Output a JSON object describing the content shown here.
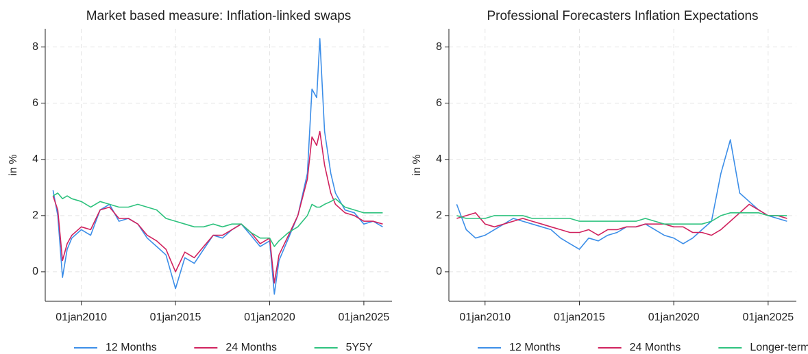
{
  "chart_data": [
    {
      "type": "line",
      "title": "Market based measure: Inflation-linked swaps",
      "y_label": "in %",
      "x": [
        "2008-07-01",
        "2008-10-01",
        "2009-01-01",
        "2009-04-01",
        "2009-07-01",
        "2010-01-01",
        "2010-07-01",
        "2011-01-01",
        "2011-07-01",
        "2012-01-01",
        "2012-07-01",
        "2013-01-01",
        "2013-07-01",
        "2014-01-01",
        "2014-07-01",
        "2015-01-01",
        "2015-07-01",
        "2016-01-01",
        "2016-07-01",
        "2017-01-01",
        "2017-07-01",
        "2018-01-01",
        "2018-07-01",
        "2019-01-01",
        "2019-07-01",
        "2020-01-01",
        "2020-04-01",
        "2020-07-01",
        "2021-01-01",
        "2021-07-01",
        "2022-01-01",
        "2022-04-01",
        "2022-07-01",
        "2022-09-01",
        "2022-12-01",
        "2023-04-01",
        "2023-07-01",
        "2024-01-01",
        "2024-07-01",
        "2025-01-01",
        "2025-07-01",
        "2026-01-01"
      ],
      "series": [
        {
          "name": "12 Months",
          "color": "#3c8ee8",
          "values": [
            2.9,
            2.0,
            -0.2,
            0.8,
            1.2,
            1.5,
            1.3,
            2.2,
            2.4,
            1.8,
            1.9,
            1.7,
            1.2,
            0.9,
            0.6,
            -0.6,
            0.5,
            0.3,
            0.8,
            1.3,
            1.2,
            1.5,
            1.7,
            1.3,
            0.9,
            1.1,
            -0.8,
            0.4,
            1.2,
            2.0,
            3.5,
            6.5,
            6.2,
            8.3,
            5.0,
            3.5,
            2.8,
            2.2,
            2.1,
            1.7,
            1.8,
            1.6
          ]
        },
        {
          "name": "24 Months",
          "color": "#d0225e",
          "values": [
            2.7,
            2.2,
            0.4,
            1.0,
            1.3,
            1.6,
            1.5,
            2.2,
            2.3,
            1.9,
            1.9,
            1.7,
            1.3,
            1.1,
            0.8,
            0.0,
            0.7,
            0.5,
            0.9,
            1.3,
            1.3,
            1.5,
            1.7,
            1.4,
            1.0,
            1.2,
            -0.4,
            0.6,
            1.3,
            2.0,
            3.3,
            4.8,
            4.5,
            5.0,
            3.8,
            2.8,
            2.4,
            2.1,
            2.0,
            1.8,
            1.8,
            1.7
          ]
        },
        {
          "name": "5Y5Y",
          "color": "#2ec27e",
          "values": [
            2.7,
            2.8,
            2.6,
            2.7,
            2.6,
            2.5,
            2.3,
            2.5,
            2.4,
            2.3,
            2.3,
            2.4,
            2.3,
            2.2,
            1.9,
            1.8,
            1.7,
            1.6,
            1.6,
            1.7,
            1.6,
            1.7,
            1.7,
            1.4,
            1.2,
            1.2,
            0.9,
            1.1,
            1.4,
            1.6,
            2.0,
            2.4,
            2.3,
            2.3,
            2.4,
            2.5,
            2.6,
            2.3,
            2.2,
            2.1,
            2.1,
            2.1
          ]
        }
      ],
      "xlim": [
        "2008-02-01",
        "2026-07-01"
      ],
      "xticks": [
        {
          "value": "2010-01-01",
          "label": "01jan2010"
        },
        {
          "value": "2015-01-01",
          "label": "01jan2015"
        },
        {
          "value": "2020-01-01",
          "label": "01jan2020"
        },
        {
          "value": "2025-01-01",
          "label": "01jan2025"
        }
      ],
      "ylim": [
        -1.05,
        8.65
      ],
      "yticks": [
        0,
        2,
        4,
        6,
        8
      ],
      "grid": true,
      "legend": "bottom"
    },
    {
      "type": "line",
      "title": "Professional Forecasters Inflation Expectations",
      "y_label": "in %",
      "x": [
        "2008-07-01",
        "2009-01-01",
        "2009-07-01",
        "2010-01-01",
        "2010-07-01",
        "2011-01-01",
        "2011-07-01",
        "2012-01-01",
        "2012-07-01",
        "2013-01-01",
        "2013-07-01",
        "2014-01-01",
        "2014-07-01",
        "2015-01-01",
        "2015-07-01",
        "2016-01-01",
        "2016-07-01",
        "2017-01-01",
        "2017-07-01",
        "2018-01-01",
        "2018-07-01",
        "2019-01-01",
        "2019-07-01",
        "2020-01-01",
        "2020-07-01",
        "2021-01-01",
        "2021-07-01",
        "2022-01-01",
        "2022-07-01",
        "2023-01-01",
        "2023-07-01",
        "2024-01-01",
        "2024-07-01",
        "2025-01-01",
        "2025-07-01",
        "2026-01-01"
      ],
      "series": [
        {
          "name": "12 Months",
          "color": "#3c8ee8",
          "values": [
            2.4,
            1.5,
            1.2,
            1.3,
            1.5,
            1.7,
            1.9,
            1.8,
            1.7,
            1.6,
            1.5,
            1.2,
            1.0,
            0.8,
            1.2,
            1.1,
            1.3,
            1.4,
            1.6,
            1.6,
            1.7,
            1.5,
            1.3,
            1.2,
            1.0,
            1.2,
            1.5,
            1.8,
            3.5,
            4.7,
            2.8,
            2.5,
            2.2,
            2.0,
            1.9,
            1.8
          ]
        },
        {
          "name": "24 Months",
          "color": "#d0225e",
          "values": [
            1.9,
            2.0,
            2.1,
            1.7,
            1.6,
            1.7,
            1.8,
            1.9,
            1.8,
            1.7,
            1.6,
            1.5,
            1.4,
            1.4,
            1.5,
            1.3,
            1.5,
            1.5,
            1.6,
            1.6,
            1.7,
            1.7,
            1.7,
            1.6,
            1.6,
            1.4,
            1.4,
            1.3,
            1.5,
            1.8,
            2.1,
            2.4,
            2.2,
            2.0,
            2.0,
            1.9
          ]
        },
        {
          "name": "Longer-term",
          "color": "#2ec27e",
          "values": [
            2.0,
            1.9,
            1.9,
            1.9,
            2.0,
            2.0,
            2.0,
            2.0,
            1.9,
            1.9,
            1.9,
            1.9,
            1.9,
            1.8,
            1.8,
            1.8,
            1.8,
            1.8,
            1.8,
            1.8,
            1.9,
            1.8,
            1.7,
            1.7,
            1.7,
            1.7,
            1.7,
            1.8,
            2.0,
            2.1,
            2.1,
            2.1,
            2.1,
            2.0,
            2.0,
            2.0
          ]
        }
      ],
      "xlim": [
        "2008-02-01",
        "2026-07-01"
      ],
      "xticks": [
        {
          "value": "2010-01-01",
          "label": "01jan2010"
        },
        {
          "value": "2015-01-01",
          "label": "01jan2015"
        },
        {
          "value": "2020-01-01",
          "label": "01jan2020"
        },
        {
          "value": "2025-01-01",
          "label": "01jan2025"
        }
      ],
      "ylim": [
        -1.05,
        8.65
      ],
      "yticks": [
        0,
        2,
        4,
        6,
        8
      ],
      "grid": true,
      "legend": "bottom"
    }
  ]
}
